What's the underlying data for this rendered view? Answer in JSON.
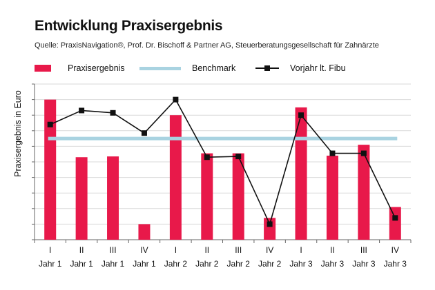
{
  "title": "Entwicklung Praxisergebnis",
  "source": "Quelle: PraxisNavigation®, Prof. Dr. Bischoff & Partner AG, Steuerberatungsgesellschaft für Zahnärzte",
  "legend": {
    "bar": "Praxisergebnis",
    "benchmark": "Benchmark",
    "line": "Vorjahr lt. Fibu"
  },
  "colors": {
    "bar": "#e8194a",
    "benchmark": "#a9d3e1",
    "line": "#111111",
    "grid": "#d9d9d9"
  },
  "chart_data": {
    "type": "bar",
    "title": "Entwicklung Praxisergebnis",
    "ylabel": "Praxisergebnis in Euro",
    "xlabel": "",
    "ylim": [
      0,
      10
    ],
    "y_ticks_labeled": false,
    "grid": "horizontal",
    "legend_position": "top",
    "categories": [
      [
        "I",
        "Jahr 1"
      ],
      [
        "II",
        "Jahr 1"
      ],
      [
        "III",
        "Jahr 1"
      ],
      [
        "IV",
        "Jahr 1"
      ],
      [
        "I",
        "Jahr 2"
      ],
      [
        "II",
        "Jahr 2"
      ],
      [
        "III",
        "Jahr 2"
      ],
      [
        "IV",
        "Jahr 2"
      ],
      [
        "I",
        "Jahr 3"
      ],
      [
        "II",
        "Jahr 3"
      ],
      [
        "III",
        "Jahr 3"
      ],
      [
        "IV",
        "Jahr 3"
      ]
    ],
    "series": [
      {
        "name": "Praxisergebnis",
        "type": "bar",
        "values": [
          9.0,
          5.3,
          5.35,
          1.0,
          8.0,
          5.55,
          5.55,
          1.4,
          8.5,
          5.4,
          6.1,
          2.1
        ]
      },
      {
        "name": "Benchmark",
        "type": "line",
        "values": [
          6.5,
          6.5,
          6.5,
          6.5,
          6.5,
          6.5,
          6.5,
          6.5,
          6.5,
          6.5,
          6.5,
          6.5
        ]
      },
      {
        "name": "Vorjahr lt. Fibu",
        "type": "line-markers",
        "values": [
          7.4,
          8.3,
          8.15,
          6.85,
          9.0,
          5.3,
          5.35,
          1.0,
          8.0,
          5.55,
          5.55,
          1.4
        ]
      }
    ]
  }
}
